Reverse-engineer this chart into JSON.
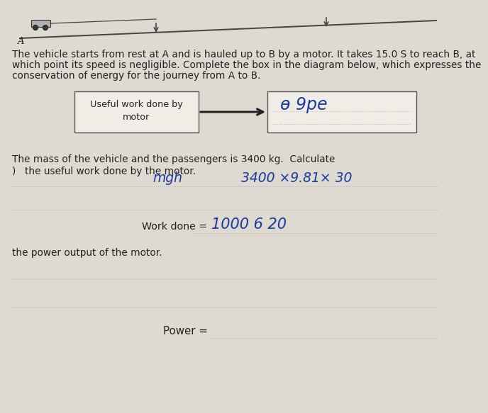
{
  "bg_color": "#dedad2",
  "text_color": "#222222",
  "handwriting_color": "#1a3a9e",
  "dotted_line_color": "#999999",
  "box_facecolor": "#f0ede6",
  "box_edgecolor": "#555555",
  "paragraph_line1": "The vehicle starts from rest at A and is hauled up to B by a motor. It takes 15.0 S to reach B, at",
  "paragraph_line2": "which point its speed is negligible. Complete the box in the diagram below, which expresses the",
  "paragraph_line3": "conservation of energy for the journey from A to B.",
  "left_box_line1": "Useful work done by",
  "left_box_line2": "motor",
  "mass_text": "The mass of the vehicle and the passengers is 3400 kg.  Calculate",
  "item_a_label": ")",
  "item_a_text": "the useful work done by the motor.",
  "hw_mgh": "mgh",
  "hw_calc": "3400 ×9.81× 30",
  "work_done_label": "Work done = ",
  "hw_workdone": "1000 6 20",
  "item_b_text": "the power output of the motor.",
  "power_label": "Power = ",
  "ramp_label": "A",
  "font_body": 9.8,
  "font_hw": 13.5,
  "font_hw_large": 15
}
